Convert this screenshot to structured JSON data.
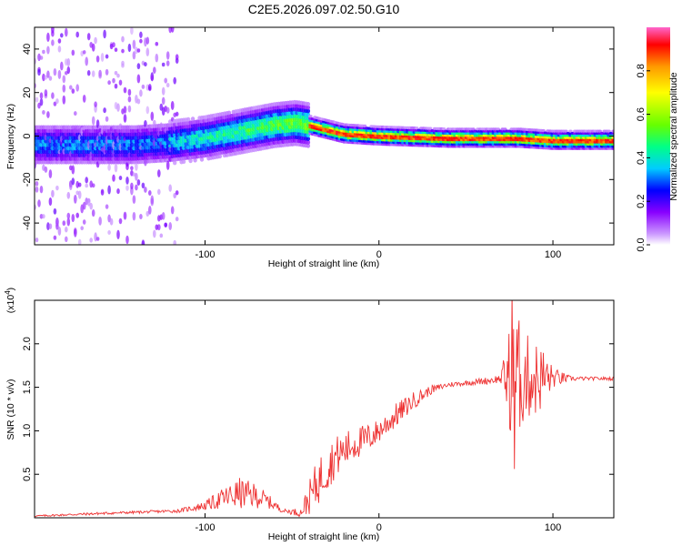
{
  "title": "C2E5.2026.097.02.50.G10",
  "chart_data": [
    {
      "type": "heatmap",
      "name": "spectrogram",
      "xlabel": "Height of straight line (km)",
      "ylabel": "Frequency (Hz)",
      "xlim": [
        -198,
        135
      ],
      "ylim": [
        -50,
        50
      ],
      "xticks": [
        -100,
        0,
        100
      ],
      "yticks": [
        40,
        20,
        0,
        -20,
        -40
      ],
      "xtick_labels": [
        "-100",
        "0",
        "100"
      ],
      "ytick_labels": [
        "40",
        "20",
        "0",
        "-20",
        "-40"
      ],
      "colorbar": {
        "label": "Normalized spectral amplitude",
        "range": [
          0,
          1
        ],
        "ticks": [
          0,
          0.2,
          0.4,
          0.6,
          0.8
        ],
        "tick_labels": [
          "0.0",
          "0.2",
          "0.4",
          "0.6",
          "0.8"
        ],
        "colormap": [
          "#ffffff",
          "#cc99ff",
          "#8800ff",
          "#0000ff",
          "#00ccff",
          "#00ff88",
          "#66ff00",
          "#ffff00",
          "#ff9900",
          "#ff0000",
          "#ff66cc"
        ]
      },
      "ridge": [
        {
          "x": -198,
          "f": -4
        },
        {
          "x": -160,
          "f": -4
        },
        {
          "x": -140,
          "f": -4
        },
        {
          "x": -120,
          "f": -3
        },
        {
          "x": -100,
          "f": -1
        },
        {
          "x": -80,
          "f": 2
        },
        {
          "x": -60,
          "f": 5
        },
        {
          "x": -48,
          "f": 6
        },
        {
          "x": -40,
          "f": 5
        },
        {
          "x": -30,
          "f": 3
        },
        {
          "x": -20,
          "f": 1
        },
        {
          "x": 0,
          "f": 0
        },
        {
          "x": 40,
          "f": -1
        },
        {
          "x": 80,
          "f": -1
        },
        {
          "x": 100,
          "f": -2
        },
        {
          "x": 135,
          "f": -2
        }
      ]
    },
    {
      "type": "line",
      "name": "snr",
      "xlabel": "Height of straight line (km)",
      "ylabel": "SNR (10 * v/v)",
      "y_scale_label": "(x10",
      "y_scale_exp": "4",
      "y_scale_close": ")",
      "xlim": [
        -198,
        135
      ],
      "ylim": [
        0,
        2.5
      ],
      "xticks": [
        -100,
        0,
        100
      ],
      "yticks": [
        0.5,
        1.0,
        1.5,
        2.0
      ],
      "xtick_labels": [
        "-100",
        "0",
        "100"
      ],
      "ytick_labels": [
        "0.5",
        "1.0",
        "1.5",
        "2.0"
      ],
      "color": "#ee3333",
      "series": [
        {
          "name": "SNR",
          "x": [
            -198,
            -160,
            -130,
            -115,
            -100,
            -90,
            -80,
            -70,
            -62,
            -55,
            -45,
            -38,
            -32,
            -25,
            -15,
            -5,
            0,
            10,
            20,
            30,
            40,
            50,
            60,
            70,
            75,
            80,
            85,
            90,
            95,
            100,
            110,
            120,
            135
          ],
          "y": [
            0.02,
            0.05,
            0.07,
            0.08,
            0.14,
            0.22,
            0.28,
            0.25,
            0.17,
            0.08,
            0.06,
            0.3,
            0.52,
            0.7,
            0.84,
            0.93,
            1.0,
            1.18,
            1.35,
            1.47,
            1.53,
            1.55,
            1.57,
            1.6,
            1.6,
            1.62,
            1.62,
            1.6,
            1.61,
            1.61,
            1.6,
            1.6,
            1.6
          ],
          "noise": [
            0.01,
            0.015,
            0.015,
            0.02,
            0.05,
            0.12,
            0.18,
            0.14,
            0.07,
            0.02,
            0.05,
            0.25,
            0.28,
            0.24,
            0.2,
            0.16,
            0.14,
            0.14,
            0.1,
            0.05,
            0.03,
            0.03,
            0.04,
            0.05,
            0.6,
            0.7,
            0.5,
            0.45,
            0.35,
            0.12,
            0.03,
            0.02,
            0.02
          ]
        }
      ]
    }
  ]
}
